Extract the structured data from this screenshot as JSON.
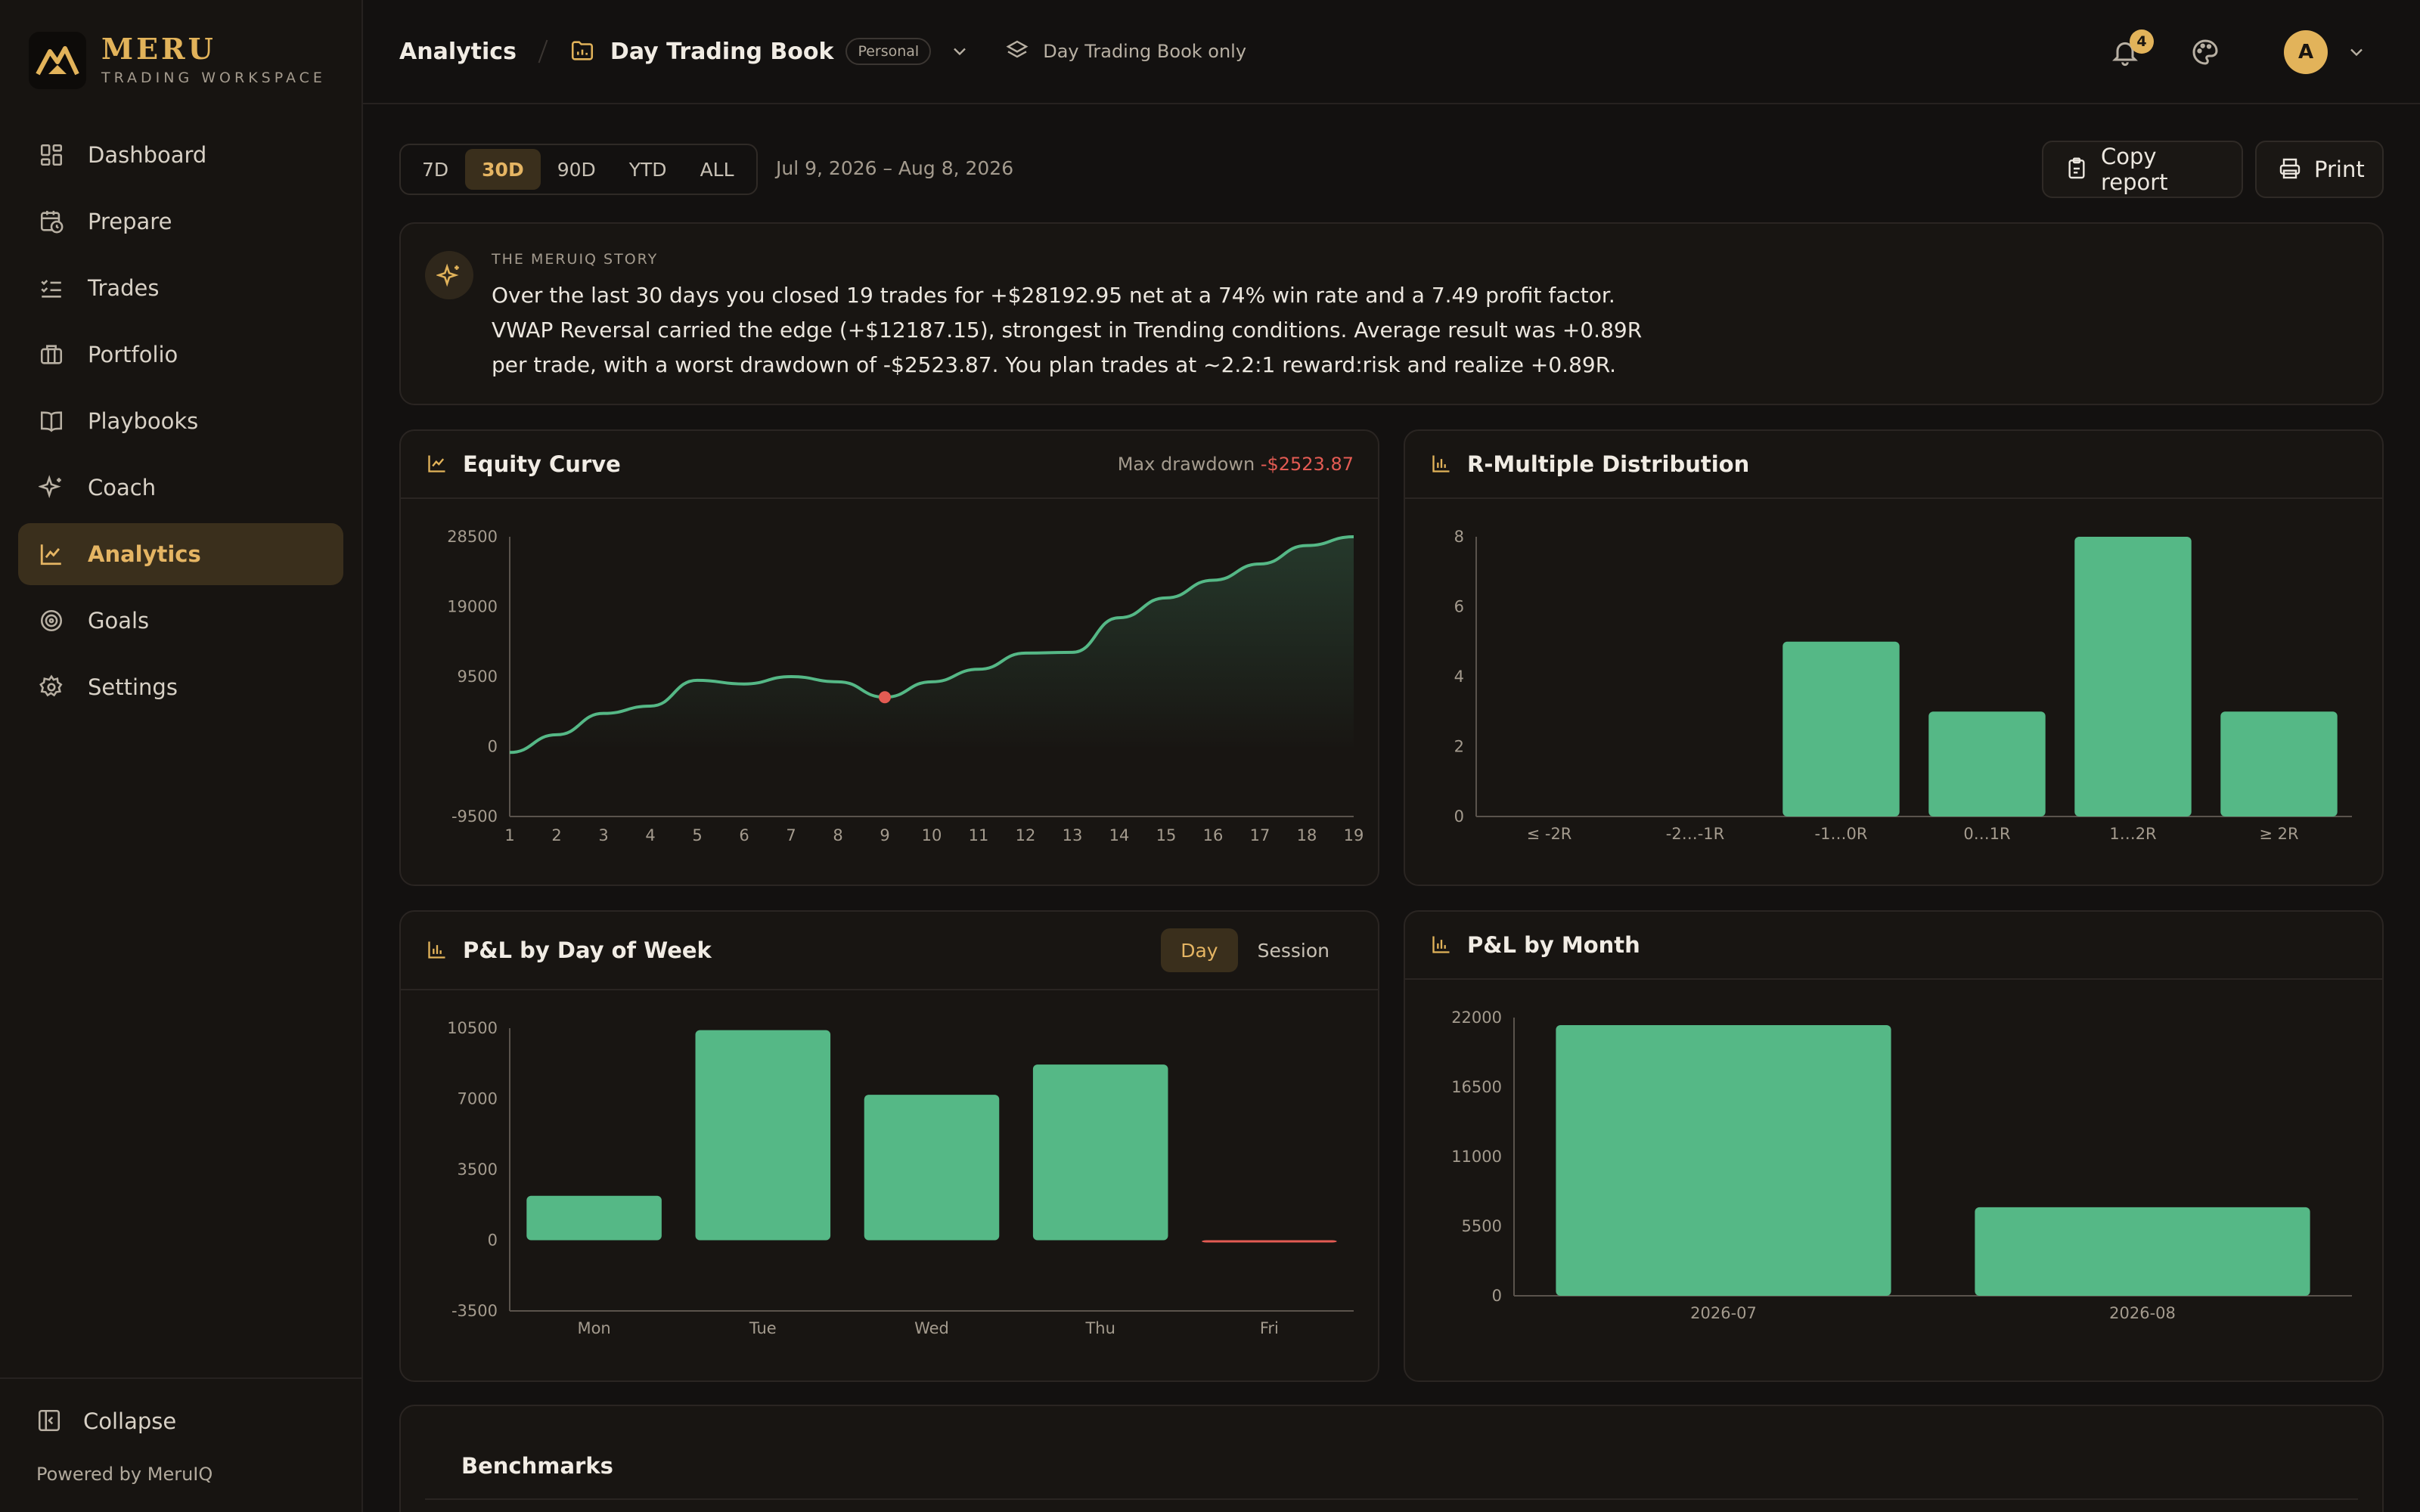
{
  "brand": {
    "name": "MERU",
    "subtitle": "TRADING WORKSPACE"
  },
  "nav": {
    "items": [
      {
        "label": "Dashboard",
        "icon": "grid-icon"
      },
      {
        "label": "Prepare",
        "icon": "calendar-clock-icon"
      },
      {
        "label": "Trades",
        "icon": "checklist-icon"
      },
      {
        "label": "Portfolio",
        "icon": "briefcase-icon"
      },
      {
        "label": "Playbooks",
        "icon": "book-open-icon"
      },
      {
        "label": "Coach",
        "icon": "sparkles-icon"
      },
      {
        "label": "Analytics",
        "icon": "line-chart-icon",
        "active": true
      },
      {
        "label": "Goals",
        "icon": "target-icon"
      },
      {
        "label": "Settings",
        "icon": "gear-icon"
      }
    ],
    "collapse_label": "Collapse",
    "powered_by": "Powered by MeruIQ"
  },
  "header": {
    "breadcrumb": "Analytics",
    "book_name": "Day Trading Book",
    "book_badge": "Personal",
    "scope_label": "Day Trading Book only",
    "notification_count": "4",
    "avatar_initial": "A"
  },
  "toolbar": {
    "ranges": [
      "7D",
      "30D",
      "90D",
      "YTD",
      "ALL"
    ],
    "active_range": "30D",
    "date_range": "Jul 9, 2026 – Aug 8, 2026",
    "copy_label": "Copy report",
    "print_label": "Print"
  },
  "story": {
    "label": "THE MERUIQ STORY",
    "text": "Over the last 30 days you closed 19 trades for +$28192.95 net at a 74% win rate and a 7.49 profit factor. VWAP Reversal carried the edge (+$12187.15), strongest in Trending conditions. Average result was +0.89R per trade, with a worst drawdown of -$2523.87. You plan trades at ~2.2:1 reward:risk and realize +0.89R."
  },
  "colors": {
    "accent": "#e2b35a",
    "positive": "#55b886",
    "negative": "#e35b53",
    "background": "#131110",
    "card": "#181512"
  },
  "equity_card": {
    "title": "Equity Curve",
    "max_drawdown_label": "Max drawdown",
    "max_drawdown_value": "-$2523.87"
  },
  "r_card": {
    "title": "R-Multiple Distribution"
  },
  "dow_card": {
    "title": "P&L by Day of Week",
    "toggle": [
      "Day",
      "Session"
    ],
    "toggle_active": "Day"
  },
  "month_card": {
    "title": "P&L by Month"
  },
  "benchmarks": {
    "title": "Benchmarks"
  },
  "chart_data": [
    {
      "id": "equity",
      "type": "area",
      "x": [
        1,
        2,
        3,
        4,
        5,
        6,
        7,
        8,
        9,
        10,
        11,
        12,
        13,
        14,
        15,
        16,
        17,
        18,
        19
      ],
      "values": [
        -800,
        1600,
        4500,
        5500,
        9000,
        8500,
        9500,
        8800,
        6700,
        8800,
        10500,
        12700,
        12800,
        17500,
        20200,
        22600,
        24800,
        27300,
        28500
      ],
      "ylim": [
        -9500,
        28500
      ],
      "yticks": [
        28500,
        19000,
        9500,
        0,
        -9500
      ],
      "drawdown_marker_x": 9
    },
    {
      "id": "rdist",
      "type": "bar",
      "categories": [
        "≤ -2R",
        "-2…-1R",
        "-1…0R",
        "0…1R",
        "1…2R",
        "≥ 2R"
      ],
      "values": [
        0,
        0,
        5,
        3,
        8,
        3
      ],
      "ylim": [
        0,
        8
      ],
      "yticks": [
        8,
        6,
        4,
        2,
        0
      ]
    },
    {
      "id": "dow",
      "type": "bar",
      "categories": [
        "Mon",
        "Tue",
        "Wed",
        "Thu",
        "Fri"
      ],
      "values": [
        2200,
        10400,
        7200,
        8700,
        -50
      ],
      "ylim": [
        -3500,
        10500
      ],
      "yticks": [
        10500,
        7000,
        3500,
        0,
        -3500
      ]
    },
    {
      "id": "month",
      "type": "bar",
      "categories": [
        "2026-07",
        "2026-08"
      ],
      "values": [
        21400,
        7000
      ],
      "ylim": [
        0,
        22000
      ],
      "yticks": [
        22000,
        16500,
        11000,
        5500,
        0
      ]
    }
  ]
}
